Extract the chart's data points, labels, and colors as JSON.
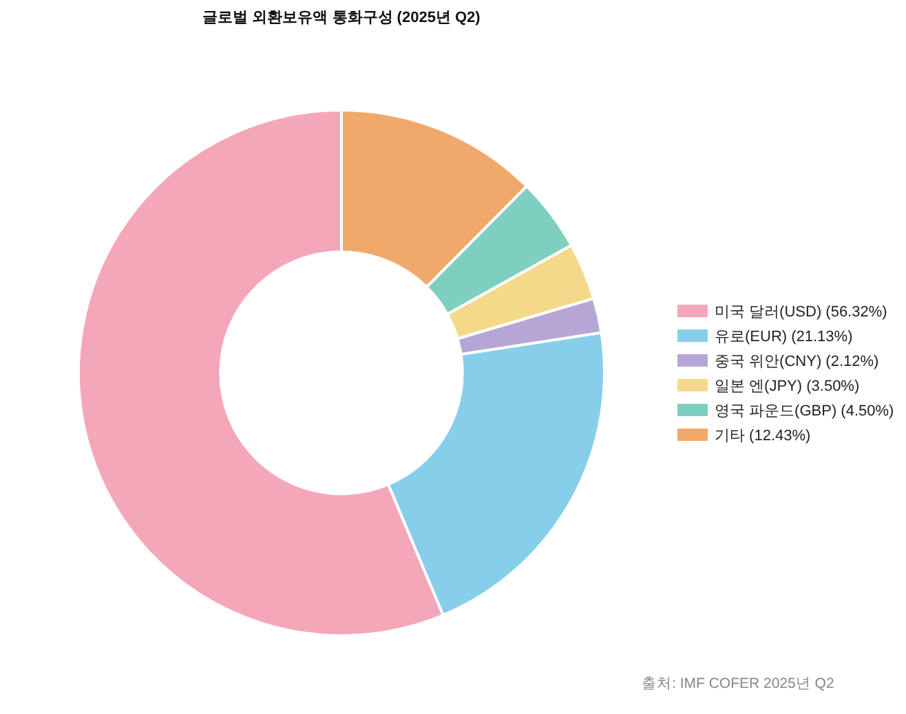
{
  "chart_data": {
    "type": "donut",
    "title": "글로벌 외환보유액 통화구성 (2025년 Q2)",
    "categories": [
      "미국 달러(USD) (56.32%)",
      "유로(EUR) (21.13%)",
      "중국 위안(CNY) (2.12%)",
      "일본 엔(JPY) (3.50%)",
      "영국 파운드(GBP) (4.50%)",
      "기타 (12.43%)"
    ],
    "values": [
      56.32,
      21.13,
      2.12,
      3.5,
      4.5,
      12.43
    ],
    "colors": [
      "#f4a7b9",
      "#87ceeb",
      "#b6a6d6",
      "#f5d98b",
      "#7fcfc1",
      "#f0a96b"
    ],
    "legend": "right",
    "annotations": [
      "출처: IMF COFER 2025년 Q2"
    ]
  }
}
